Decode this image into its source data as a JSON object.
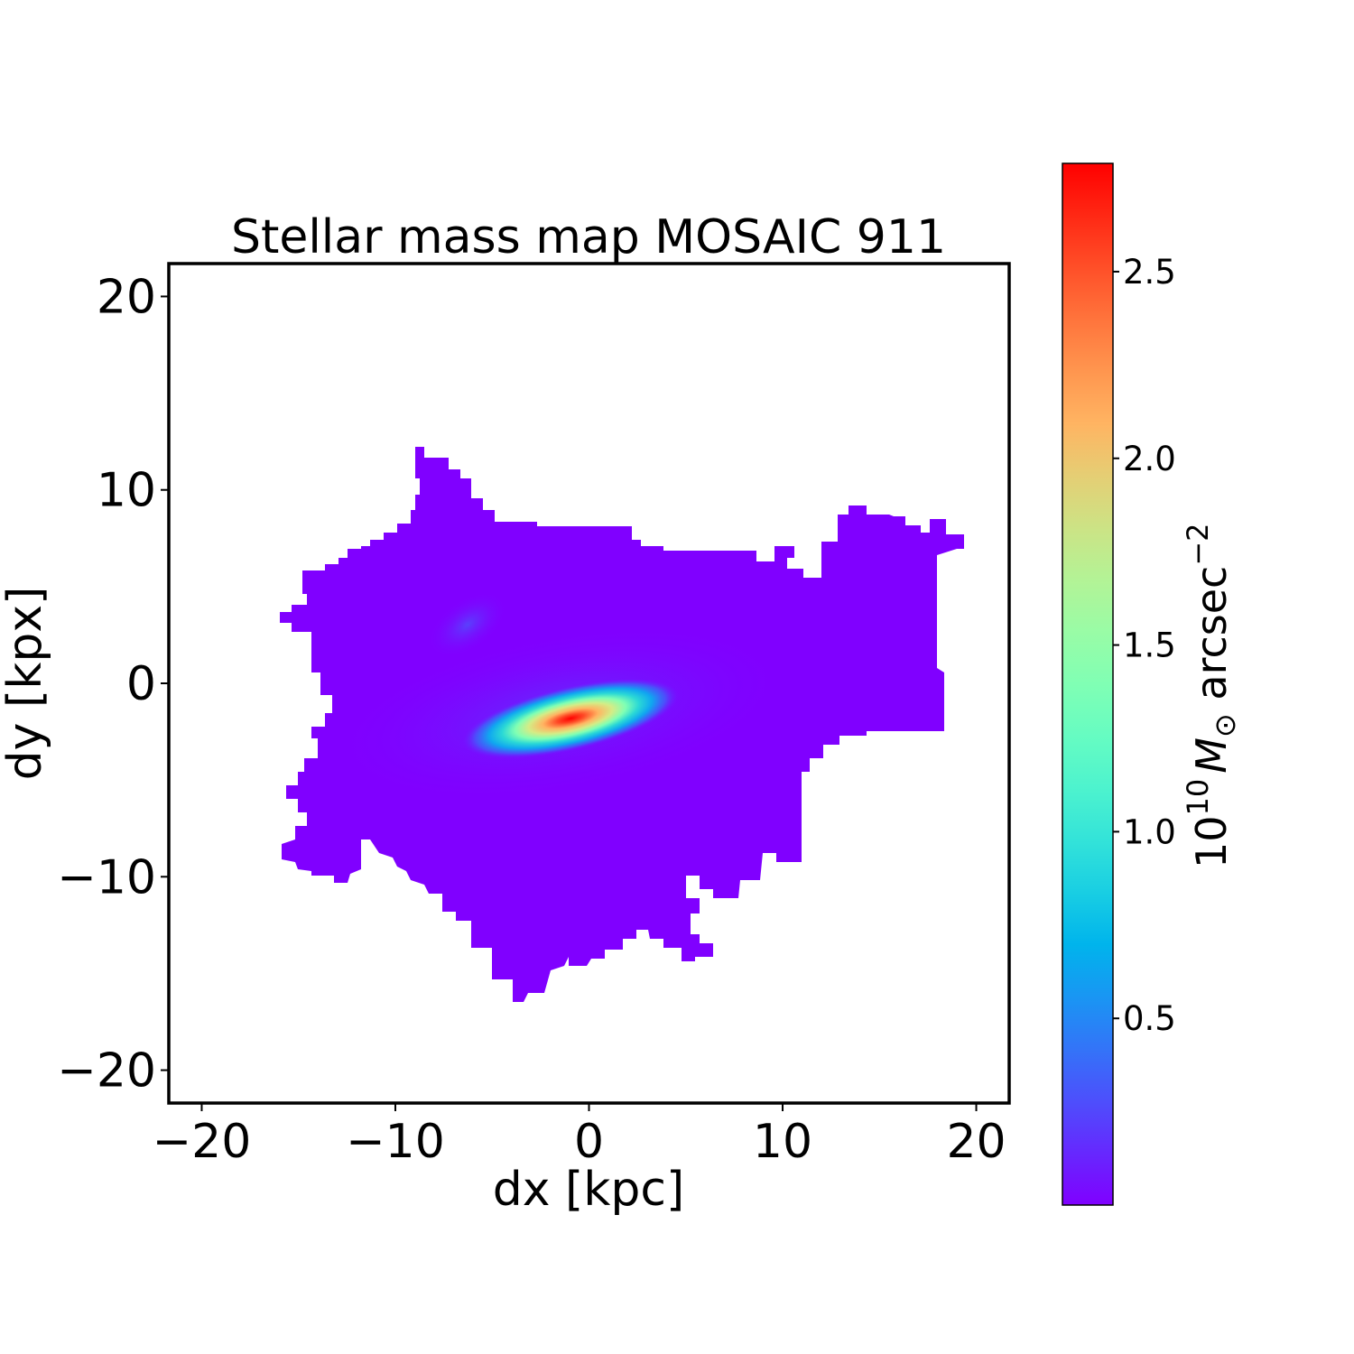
{
  "chart_data": {
    "type": "heatmap",
    "title": "Stellar mass map MOSAIC 911",
    "xlabel": "dx [kpc]",
    "ylabel": "dy [kpx]",
    "xlim": [
      -21.7,
      21.7
    ],
    "ylim": [
      -21.7,
      21.7
    ],
    "xticks": [
      -20,
      -10,
      0,
      10,
      20
    ],
    "yticks": [
      -20,
      -10,
      0,
      10,
      20
    ],
    "xtick_labels": [
      "−20",
      "−10",
      "0",
      "10",
      "20"
    ],
    "ytick_labels": [
      "−20",
      "−10",
      "0",
      "10",
      "20"
    ],
    "grid": false,
    "colormap": "rainbow",
    "colorbar": {
      "label_base": "10",
      "label_exp": "10",
      "label_symbol": "M",
      "label_sub": "⊙",
      "label_unit": " arcsec",
      "label_unit_exp": "−2",
      "vmin": 0.0,
      "vmax": 2.79,
      "ticks": [
        0.5,
        1.0,
        1.5,
        2.0,
        2.5
      ],
      "tick_labels": [
        "0.5",
        "1.0",
        "1.5",
        "2.0",
        "2.5"
      ]
    },
    "features": [
      {
        "name": "central peak",
        "x": -0.8,
        "y": -1.8,
        "value": 2.79
      },
      {
        "name": "secondary clump",
        "x": -6.2,
        "y": 3.1,
        "value": 0.25
      }
    ],
    "background_value": 0.0
  }
}
